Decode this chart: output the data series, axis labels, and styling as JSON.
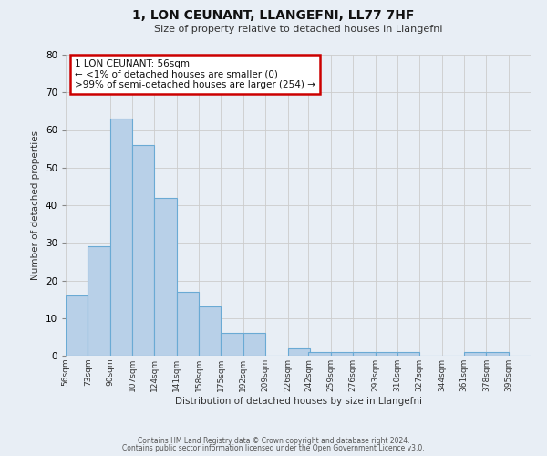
{
  "title": "1, LON CEUNANT, LLANGEFNI, LL77 7HF",
  "subtitle": "Size of property relative to detached houses in Llangefni",
  "xlabel": "Distribution of detached houses by size in Llangefni",
  "ylabel": "Number of detached properties",
  "bar_values": [
    16,
    29,
    63,
    56,
    42,
    17,
    13,
    6,
    6,
    0,
    2,
    1,
    1,
    1,
    1,
    1,
    0,
    0,
    1,
    1,
    0
  ],
  "bin_labels": [
    "56sqm",
    "73sqm",
    "90sqm",
    "107sqm",
    "124sqm",
    "141sqm",
    "158sqm",
    "175sqm",
    "192sqm",
    "209sqm",
    "226sqm",
    "242sqm",
    "259sqm",
    "276sqm",
    "293sqm",
    "310sqm",
    "327sqm",
    "344sqm",
    "361sqm",
    "378sqm",
    "395sqm"
  ],
  "bin_edges": [
    56,
    73,
    90,
    107,
    124,
    141,
    158,
    175,
    192,
    209,
    226,
    242,
    259,
    276,
    293,
    310,
    327,
    344,
    361,
    378,
    395
  ],
  "bar_color": "#b8d0e8",
  "bar_edge_color": "#6aaad4",
  "ylim": [
    0,
    80
  ],
  "yticks": [
    0,
    10,
    20,
    30,
    40,
    50,
    60,
    70,
    80
  ],
  "annotation_box_text": "1 LON CEUNANT: 56sqm\n← <1% of detached houses are smaller (0)\n>99% of semi-detached houses are larger (254) →",
  "annotation_box_color": "#ffffff",
  "annotation_box_edgecolor": "#cc0000",
  "background_color": "#e8eef5",
  "plot_bg_color": "#e8eef5",
  "footer_line1": "Contains HM Land Registry data © Crown copyright and database right 2024.",
  "footer_line2": "Contains public sector information licensed under the Open Government Licence v3.0.",
  "grid_color": "#cccccc",
  "title_fontsize": 10,
  "subtitle_fontsize": 8,
  "ylabel_fontsize": 7.5,
  "xlabel_fontsize": 7.5,
  "ytick_fontsize": 7.5,
  "xtick_fontsize": 6.5,
  "footer_fontsize": 5.5,
  "annot_fontsize": 7.5
}
